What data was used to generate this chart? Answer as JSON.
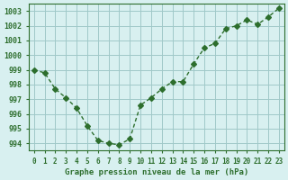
{
  "x": [
    0,
    1,
    2,
    3,
    4,
    5,
    6,
    7,
    8,
    9,
    10,
    11,
    12,
    13,
    14,
    15,
    16,
    17,
    18,
    19,
    20,
    21,
    22,
    23
  ],
  "y": [
    999.0,
    998.8,
    997.7,
    997.1,
    996.4,
    995.2,
    994.2,
    994.0,
    993.9,
    994.3,
    996.6,
    997.1,
    997.7,
    998.2,
    998.2,
    999.4,
    1000.5,
    1000.8,
    1001.8,
    1002.0,
    1002.4,
    1002.1,
    1002.6,
    1003.2
  ],
  "line_color": "#2d6e2d",
  "marker": "D",
  "marker_size": 3,
  "bg_color": "#d8f0f0",
  "grid_color": "#a0c8c8",
  "title": "Graphe pression niveau de la mer (hPa)",
  "xlabel_fontsize": 7,
  "ylabel_labels": [
    994,
    995,
    996,
    997,
    998,
    999,
    1000,
    1001,
    1002,
    1003
  ],
  "ylim": [
    993.5,
    1003.5
  ],
  "xlim": [
    -0.5,
    23.5
  ]
}
